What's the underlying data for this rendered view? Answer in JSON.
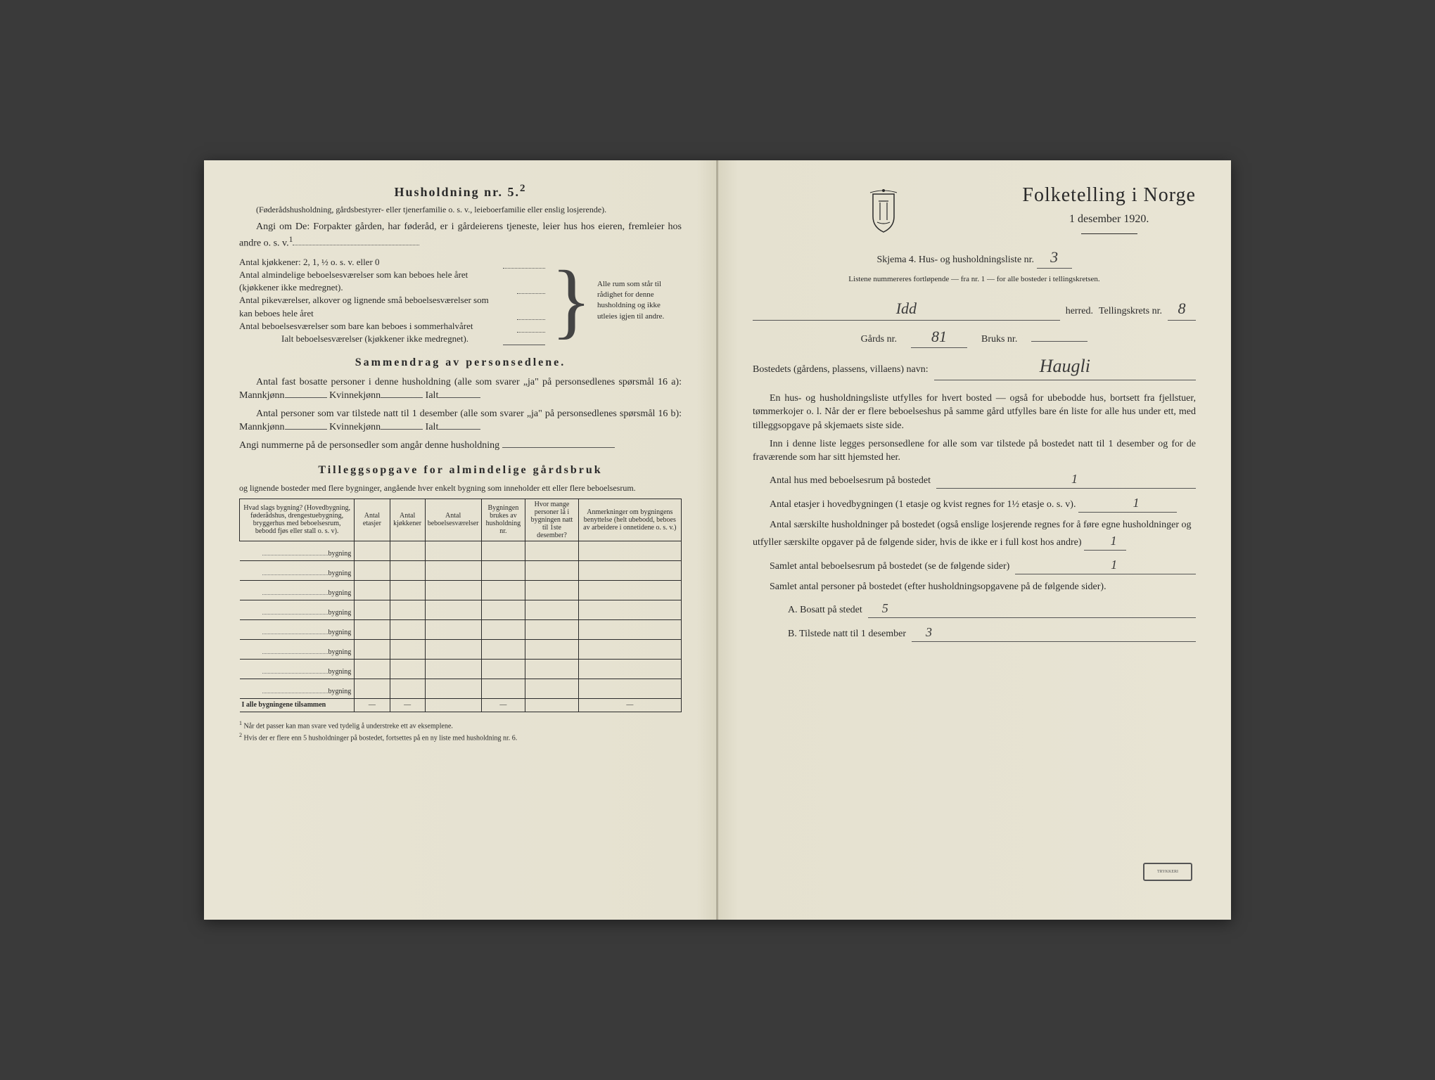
{
  "leftPage": {
    "householdTitle": "Husholdning nr. 5.",
    "householdTitleSup": "2",
    "householdSub1": "(Føderådshusholdning, gårdsbestyrer- eller tjenerfamilie o. s. v., leieboerfamilie eller enslig losjerende).",
    "householdSub2": "Angi om De: Forpakter gården, har føderåd, er i gårdeierens tjeneste, leier hus hos eieren, fremleier hos andre o. s. v.",
    "householdSub2Sup": "1",
    "kitchenLine": "Antal kjøkkener: 2, 1, ½ o. s. v. eller 0",
    "braceLines": [
      "Antal almindelige beboelsesværelser som kan beboes hele året (kjøkkener ikke medregnet).",
      "Antal pikeværelser, alkover og lignende små beboelsesværelser som kan beboes hele året",
      "Antal beboelsesværelser som bare kan beboes i sommerhalvåret"
    ],
    "braceTotal": "Ialt beboelsesværelser  (kjøkkener ikke medregnet).",
    "braceRight": "Alle rum som står til rådighet for denne husholdning og ikke utleies igjen til andre.",
    "summaryTitle": "Sammendrag av personsedlene.",
    "summaryLine1a": "Antal fast bosatte personer i denne husholdning (alle som svarer „ja\" på personsedlenes spørsmål 16 a): Mannkjønn",
    "summaryLine1b": "Kvinnekjønn",
    "summaryLine1c": "Ialt",
    "summaryLine2a": "Antal personer som var tilstede natt til 1 desember (alle som svarer „ja\" på personsedlenes spørsmål 16 b): Mannkjønn",
    "summaryLine2b": "Kvinnekjønn",
    "summaryLine2c": "Ialt",
    "summaryLine3": "Angi nummerne på de personsedler som angår denne husholdning",
    "tilleggTitle": "Tilleggsopgave for almindelige gårdsbruk",
    "tilleggSub": "og lignende bosteder med flere bygninger, angående hver enkelt bygning som inneholder ett eller flere beboelsesrum.",
    "tableHeaders": [
      "Hvad slags bygning?\n(Hovedbygning, føderådshus, drengestuebygning, bryggerhus med beboelsesrum, bebodd fjøs eller stall o. s. v).",
      "Antal etasjer",
      "Antal kjøkkener",
      "Antal beboelsesværelser",
      "Bygningen brukes av husholdning nr.",
      "Hvor mange personer lå i bygningen natt til 1ste desember?",
      "Anmerkninger om bygningens benyttelse (helt ubebodd, beboes av arbeidere i onnetidene o. s. v.)"
    ],
    "rowLabel": "bygning",
    "rowCount": 8,
    "totalRow": "I alle bygningene tilsammen",
    "footnote1": "Når det passer kan man svare ved tydelig å understreke ett av eksemplene.",
    "footnote2": "Hvis der er flere enn 5 husholdninger på bostedet, fortsettes på en ny liste med husholdning nr. 6."
  },
  "rightPage": {
    "mainTitle": "Folketelling i Norge",
    "date": "1 desember 1920.",
    "formLine": "Skjema 4.  Hus- og husholdningsliste nr.",
    "formNumber": "3",
    "listNote": "Listene nummereres fortløpende — fra nr. 1 — for alle bosteder i tellingskretsen.",
    "herred": "Idd",
    "herredLabel": "herred.",
    "tellingskretsLabel": "Tellingskrets nr.",
    "tellingskretsNr": "8",
    "gardsLabel": "Gårds nr.",
    "gardsNr": "81",
    "bruksLabel": "Bruks nr.",
    "bruksNr": "",
    "bostedLabel": "Bostedets (gårdens, plassens, villaens) navn:",
    "bostedNavn": "Haugli",
    "para1": "En hus- og husholdningsliste utfylles for hvert bosted — også for ubebodde hus, bortsett fra fjellstuer, tømmerkojer o. l.  Når der er flere beboelseshus på samme gård utfylles bare én liste for alle hus under ett, med tilleggsopgave på skjemaets siste side.",
    "para2": "Inn i denne liste legges personsedlene for alle som var tilstede på bostedet natt til 1 desember og for de fraværende som har sitt hjemsted her.",
    "q1": "Antal hus med beboelsesrum på bostedet",
    "q1val": "1",
    "q2a": "Antal etasjer i hovedbygningen (1 etasje og kvist regnes for 1½ etasje o. s. v).",
    "q2val": "1",
    "q3": "Antal særskilte husholdninger på bostedet (også enslige losjerende regnes for å føre egne husholdninger og utfyller særskilte opgaver på de følgende sider, hvis de ikke er i full kost hos andre)",
    "q3val": "1",
    "q4": "Samlet antal beboelsesrum på bostedet (se de følgende sider)",
    "q4val": "1",
    "q5": "Samlet antal personer på bostedet (efter husholdningsopgavene på de følgende sider).",
    "qA": "A.  Bosatt på stedet",
    "qAval": "5",
    "qB": "B.  Tilstede natt til 1 desember",
    "qBval": "3"
  },
  "colors": {
    "paper": "#e8e4d4",
    "text": "#2a2a2a",
    "hand": "#3a3a3a"
  }
}
